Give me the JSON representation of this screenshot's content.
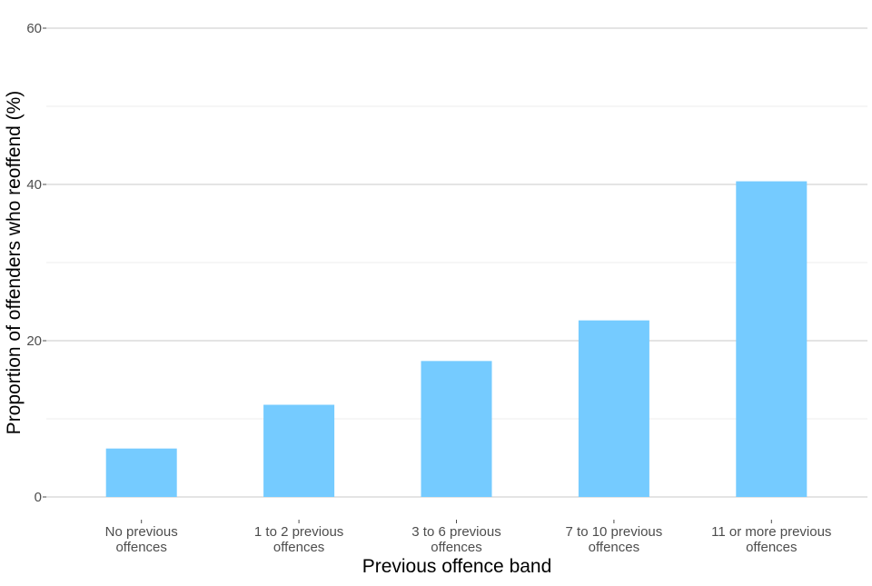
{
  "chart_data": {
    "type": "bar",
    "title": "",
    "xlabel": "Previous offence band",
    "ylabel": "Proportion of offenders who reoffend (%)",
    "categories": [
      [
        "No previous",
        "offences"
      ],
      [
        "1 to 2 previous",
        "offences"
      ],
      [
        "3 to 6 previous",
        "offences"
      ],
      [
        "7 to 10 previous",
        "offences"
      ],
      [
        "11 or more previous",
        "offences"
      ]
    ],
    "values": [
      6.2,
      11.8,
      17.4,
      22.6,
      40.4
    ],
    "ylim": [
      0,
      60
    ],
    "yticks": [
      0,
      20,
      40,
      60
    ],
    "y_minor_ticks": [
      10,
      30,
      50
    ],
    "grid": true,
    "legend": "none",
    "bar_color": "#75CBFF"
  }
}
